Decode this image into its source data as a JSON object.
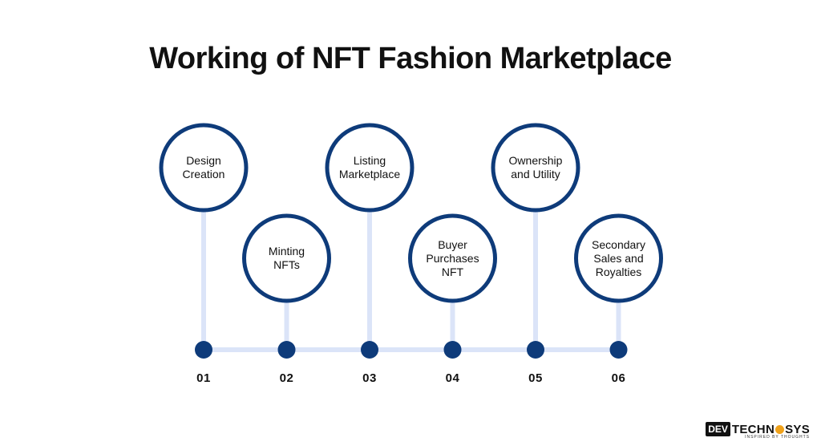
{
  "title": "Working of NFT Fashion Marketplace",
  "steps": [
    {
      "number": "01",
      "label": "Design Creation",
      "lines": [
        "Design",
        "Creation"
      ],
      "position": "top"
    },
    {
      "number": "02",
      "label": "Minting NFTs",
      "lines": [
        "Minting",
        "NFTs"
      ],
      "position": "bottom"
    },
    {
      "number": "03",
      "label": "Listing Marketplace",
      "lines": [
        "Listing",
        "Marketplace"
      ],
      "position": "top"
    },
    {
      "number": "04",
      "label": "Buyer Purchases NFT",
      "lines": [
        "Buyer",
        "Purchases",
        "NFT"
      ],
      "position": "bottom"
    },
    {
      "number": "05",
      "label": "Ownership and Utility",
      "lines": [
        "Ownership",
        "and Utility"
      ],
      "position": "top"
    },
    {
      "number": "06",
      "label": "Secondary Sales and Royalties",
      "lines": [
        "Secondary",
        "Sales and",
        "Royalties"
      ],
      "position": "bottom"
    }
  ],
  "brand": {
    "box": "DEV",
    "main_left": "TECHN",
    "main_right": "SYS",
    "tagline": "INSPIRED BY THOUGHTS"
  },
  "colors": {
    "circle_stroke": "#0e3b7a",
    "connector": "#dbe4f8",
    "node": "#0e3b7a",
    "text": "#111111",
    "brand_accent": "#f0a21b"
  }
}
